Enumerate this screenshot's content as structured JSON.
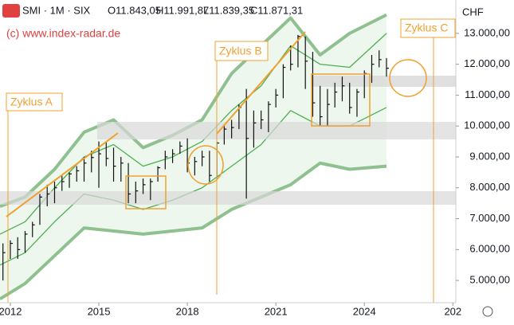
{
  "chart_data": {
    "type": "ohlc",
    "title": "SMI · 1M · SIX",
    "ohlc_labels": [
      "O11.843,05",
      "H11.991,87",
      "L11.839,35",
      "C11.871,31"
    ],
    "source": "(c) www.index-radar.de",
    "currency": "CHF",
    "annotations": [
      "Zyklus A",
      "Zyklus B",
      "Zyklus C"
    ],
    "color": "#111111",
    "x": [
      2011.75,
      2012.0,
      2012.25,
      2012.5,
      2012.75,
      2013.0,
      2013.25,
      2013.5,
      2013.75,
      2014.0,
      2014.25,
      2014.5,
      2014.75,
      2015.0,
      2015.25,
      2015.5,
      2015.75,
      2016.0,
      2016.25,
      2016.5,
      2016.75,
      2017.0,
      2017.25,
      2017.5,
      2017.75,
      2018.0,
      2018.25,
      2018.5,
      2018.75,
      2019.0,
      2019.25,
      2019.5,
      2019.75,
      2020.0,
      2020.25,
      2020.5,
      2020.75,
      2021.0,
      2021.25,
      2021.5,
      2021.75,
      2022.0,
      2022.25,
      2022.5,
      2022.75,
      2023.0,
      2023.25,
      2023.5,
      2023.75,
      2024.0,
      2024.25,
      2024.5,
      2024.75
    ],
    "high": [
      6200,
      6300,
      6400,
      6600,
      6900,
      7800,
      8100,
      8200,
      8400,
      8500,
      8700,
      9000,
      9200,
      9500,
      9500,
      9300,
      9000,
      8800,
      8200,
      8300,
      8300,
      8700,
      9200,
      9250,
      9500,
      9600,
      9000,
      9200,
      9200,
      9500,
      10000,
      10200,
      10700,
      11200,
      10500,
      10500,
      10800,
      11200,
      12000,
      12600,
      12950,
      12900,
      12400,
      11300,
      11200,
      11400,
      11600,
      11400,
      11200,
      11800,
      12300,
      12450,
      12200
    ],
    "low": [
      5000,
      5700,
      5700,
      5900,
      6400,
      6800,
      7400,
      7500,
      7900,
      8000,
      8200,
      8200,
      8500,
      8000,
      8700,
      8200,
      8200,
      7500,
      7500,
      7800,
      7600,
      8200,
      8600,
      8800,
      9100,
      8500,
      8400,
      8700,
      8200,
      8300,
      9400,
      9600,
      9900,
      7650,
      9300,
      9900,
      9800,
      10600,
      10900,
      11800,
      11900,
      11200,
      10300,
      10000,
      10000,
      10600,
      10800,
      10400,
      10300,
      10900,
      11400,
      11900,
      11600
    ],
    "close": [
      5900,
      6200,
      6000,
      6500,
      6800,
      7700,
      7800,
      8000,
      8200,
      8450,
      8550,
      8800,
      8980,
      9100,
      8950,
      8700,
      8800,
      7800,
      7900,
      8100,
      8200,
      8650,
      9000,
      9100,
      9350,
      8800,
      8850,
      9000,
      8400,
      9450,
      9900,
      9950,
      10600,
      9600,
      10100,
      10200,
      10700,
      11000,
      11900,
      12000,
      12900,
      12100,
      10750,
      10300,
      10700,
      11100,
      11300,
      10600,
      11100,
      11700,
      12000,
      12150,
      11871
    ],
    "bands": {
      "x": [
        2011.65,
        2012.5,
        2013.5,
        2014.5,
        2015.5,
        2016.5,
        2017.5,
        2018.5,
        2019.5,
        2020.5,
        2021.5,
        2022.5,
        2023.5,
        2024.75
      ],
      "series": [
        {
          "color": "#8fc08f",
          "values": [
            7400,
            7700,
            8600,
            9800,
            10200,
            9300,
            9700,
            10200,
            11700,
            12600,
            13500,
            12300,
            13000,
            13600
          ]
        },
        {
          "color": "#8fc08f",
          "values": [
            4400,
            4900,
            5800,
            6700,
            6600,
            6500,
            6600,
            6700,
            7300,
            7700,
            8100,
            8800,
            8600,
            8700
          ]
        },
        {
          "color": "#4caf50",
          "values": [
            6500,
            6900,
            8000,
            9000,
            9400,
            8700,
            9000,
            9500,
            10500,
            11300,
            12600,
            12000,
            11900,
            13000
          ]
        },
        {
          "color": "#4caf50",
          "values": [
            5500,
            5900,
            6900,
            7800,
            7600,
            7300,
            7600,
            8000,
            8700,
            9400,
            10500,
            10000,
            10000,
            10600
          ]
        }
      ]
    },
    "xlim": [
      2011.65,
      2027.1
    ],
    "ylim": [
      4280,
      14080
    ],
    "xticks": [
      2012,
      2015,
      2018,
      2021,
      2024,
      {
        "value": 2027,
        "label": "202"
      }
    ],
    "yticks": [
      {
        "value": 13000,
        "label": "13.000,00"
      },
      {
        "value": 12000,
        "label": "12.000,00"
      },
      {
        "value": 11000,
        "label": "11.000,00"
      },
      {
        "value": 10000,
        "label": "10.000,00"
      },
      {
        "value": 9000,
        "label": "9.000,00"
      },
      {
        "value": 8000,
        "label": "8.000,00"
      },
      {
        "value": 7000,
        "label": "7.000,00"
      },
      {
        "value": 6000,
        "label": "6.000,00"
      },
      {
        "value": 5000,
        "label": "5.000,00"
      }
    ]
  }
}
